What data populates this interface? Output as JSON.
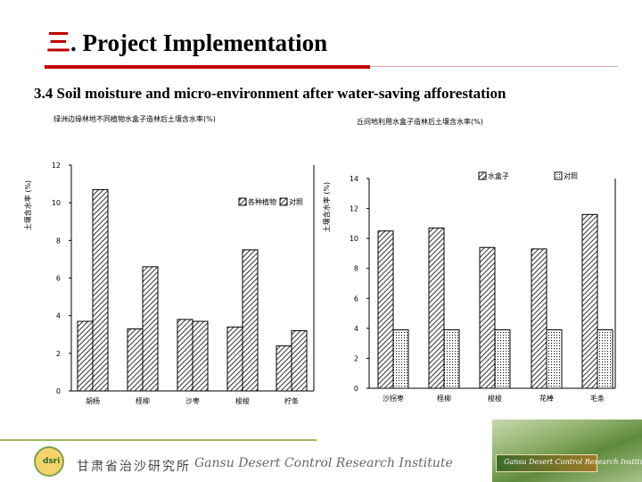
{
  "slide": {
    "title_num": "三",
    "title_text": ". Project Implementation",
    "subtitle": "3.4 Soil moisture and micro-environment after water-saving afforestation",
    "footer_logo": "dsri",
    "footer_cn": "甘肃省治沙研究所",
    "footer_en": "Gansu Desert Control Research Institute"
  },
  "chart_data": [
    {
      "type": "bar",
      "title": "绿洲边缘林地不同植物水盒子造林后土壤含水率(%)",
      "ylabel": "土壤含水率 (%)",
      "xlabel": "",
      "ylim": [
        0,
        12
      ],
      "yticks": [
        0,
        2,
        4,
        6,
        8,
        10,
        12
      ],
      "ytick_labels": [
        "0",
        "2",
        "4",
        "6",
        "8",
        "10",
        "12"
      ],
      "categories": [
        "胡杨",
        "柽柳",
        "沙枣",
        "梭梭",
        "柠条"
      ],
      "legend": "center-right",
      "series": [
        {
          "name": "各种植物",
          "values": [
            3.7,
            3.3,
            3.8,
            3.4,
            2.4
          ],
          "pattern": "hatch",
          "color": "#000000"
        },
        {
          "name": "对照",
          "values": [
            10.7,
            6.6,
            3.7,
            7.5,
            3.2
          ],
          "pattern": "hatch",
          "color": "#000000"
        }
      ]
    },
    {
      "type": "bar",
      "title": "丘间地利用水盒子造林后土壤含水率(%)",
      "ylabel": "土壤含水率 (%)",
      "xlabel": "",
      "ylim": [
        0,
        14
      ],
      "yticks": [
        0,
        2,
        4,
        6,
        8,
        10,
        12,
        14
      ],
      "ytick_labels": [
        "0",
        "2",
        "4",
        "6",
        "8",
        "10",
        "12",
        "14"
      ],
      "categories": [
        "沙拐枣",
        "柽柳",
        "梭梭",
        "花棒",
        "毛条"
      ],
      "legend": "top-right",
      "series": [
        {
          "name": "水盒子",
          "values": [
            10.5,
            10.7,
            9.4,
            9.3,
            11.6
          ],
          "pattern": "hatch",
          "color": "#000000"
        },
        {
          "name": "对照",
          "values": [
            3.9,
            3.9,
            3.9,
            3.9,
            3.9
          ],
          "pattern": "dots",
          "color": "#000000"
        }
      ]
    }
  ]
}
